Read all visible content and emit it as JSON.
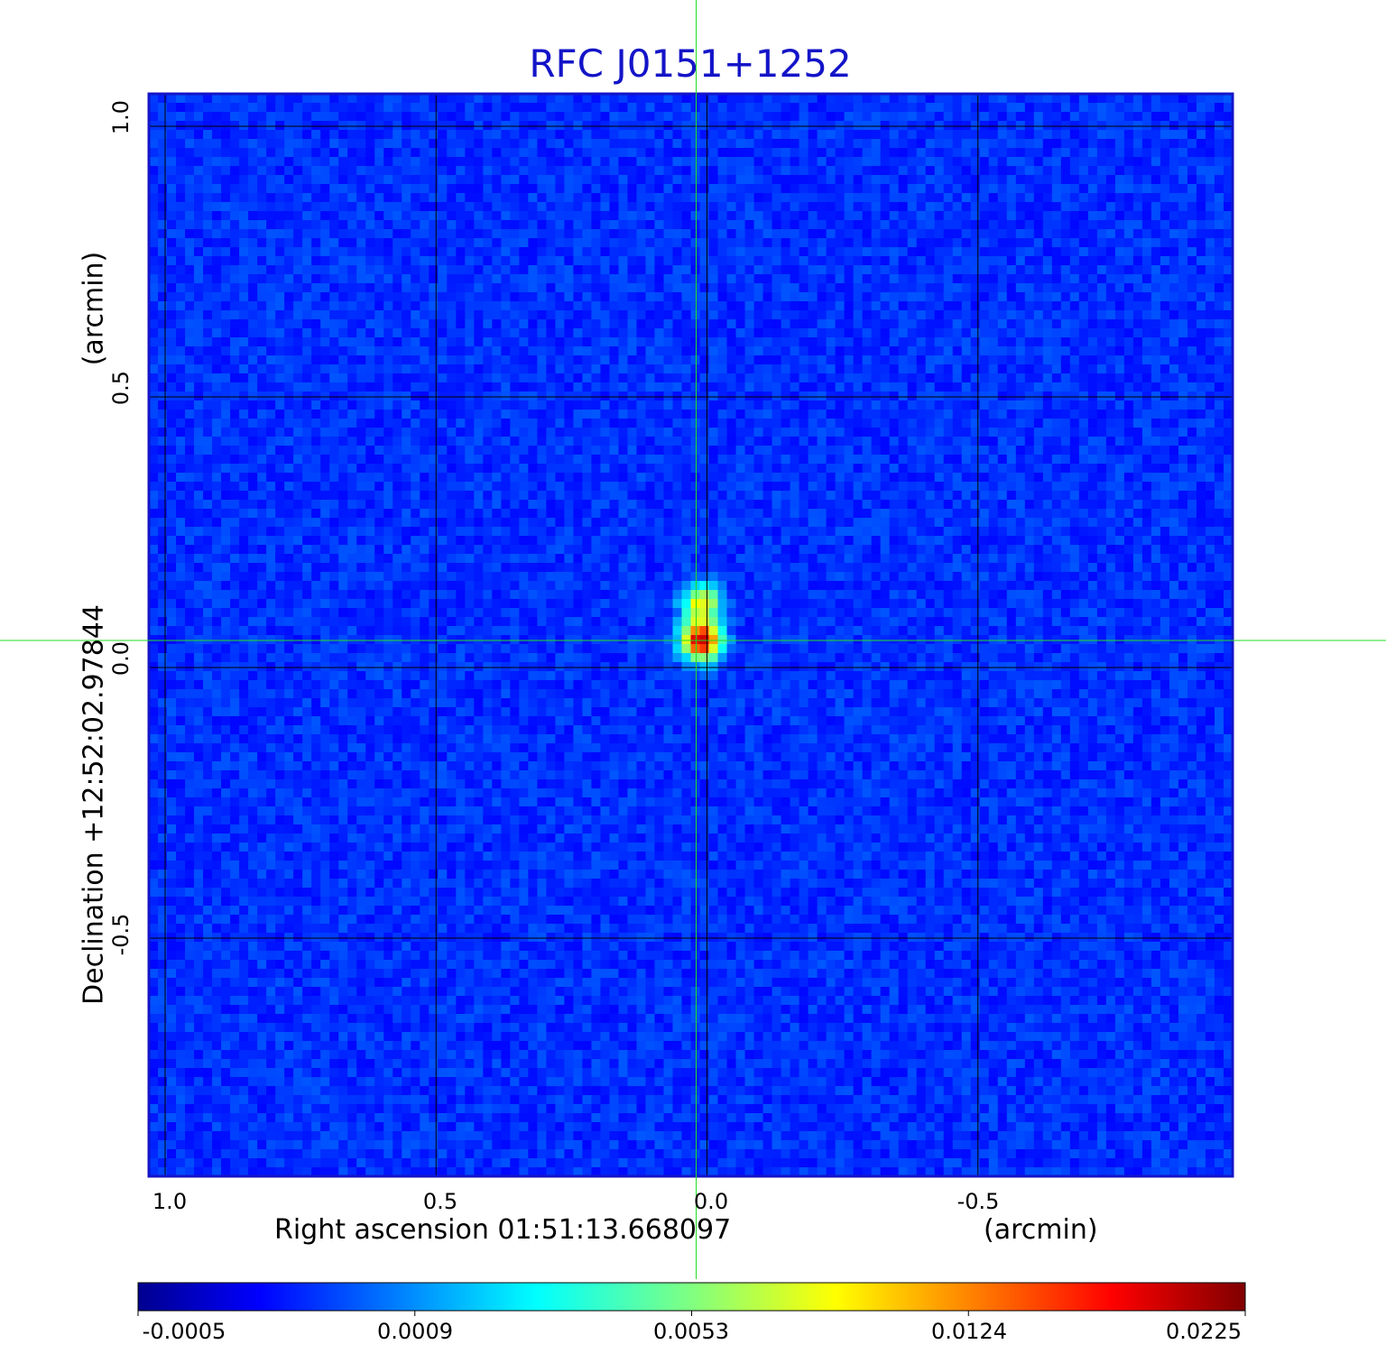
{
  "chart_data": {
    "type": "heatmap",
    "title": "RFC J0151+1252",
    "xlabel": "Right ascension  01:51:13.668097",
    "xunit": "(arcmin)",
    "ylabel": "Declination  +12:52:02.97844",
    "yunit": "(arcmin)",
    "x_ticks": [
      "1.0",
      "0.5",
      "0.0",
      "-0.5"
    ],
    "x_tick_values": [
      1.0,
      0.5,
      0.0,
      -0.5
    ],
    "y_ticks": [
      "1.0",
      "0.5",
      "0.0",
      "-0.5"
    ],
    "y_tick_values": [
      1.0,
      0.5,
      0.0,
      -0.5
    ],
    "xlim": [
      1.03,
      -0.97
    ],
    "ylim": [
      -0.94,
      1.06
    ],
    "grid": true,
    "crosshair": [
      0.02,
      0.05
    ],
    "colorbar": {
      "ticks": [
        "-0.0005",
        "0.0009",
        "0.0053",
        "0.0124",
        "0.0225"
      ],
      "colormap": "jet"
    },
    "sources": [
      {
        "x": 0.01,
        "y": 0.05,
        "peak": 0.0225
      },
      {
        "x": 0.01,
        "y": 0.12,
        "peak": 0.0085
      }
    ],
    "background_level": 0.0005
  },
  "colors": {
    "title": "#1414c8",
    "crosshair": "#22dd22",
    "grid": "#000000",
    "frame": "#1414c8"
  }
}
